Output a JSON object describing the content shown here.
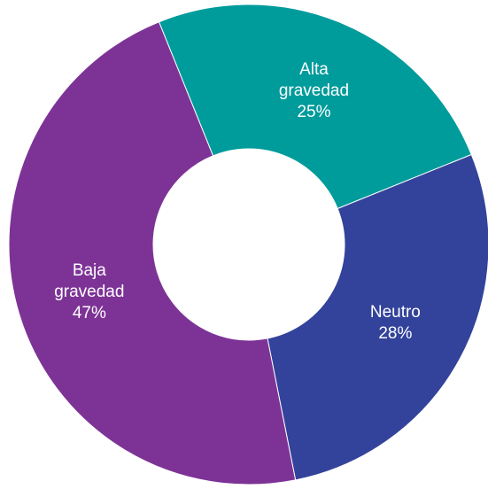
{
  "chart_data": {
    "type": "donut",
    "categories": [
      "Alta gravedad",
      "Neutro",
      "Baja gravedad"
    ],
    "values": [
      25,
      28,
      47
    ],
    "value_labels": [
      "25%",
      "28%",
      "47%"
    ],
    "colors": [
      "#009b9b",
      "#33439b",
      "#7d3396"
    ]
  }
}
